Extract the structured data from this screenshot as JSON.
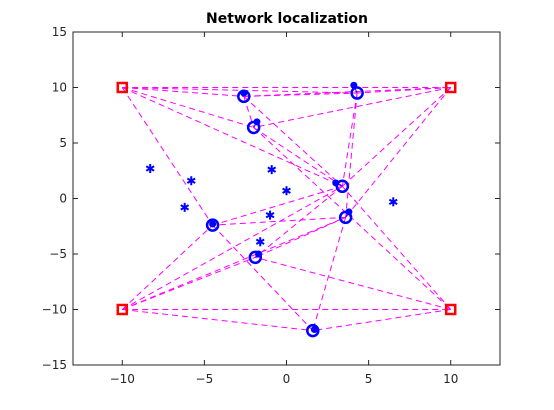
{
  "chart_data": {
    "type": "scatter",
    "title": "Network localization",
    "xlabel": "",
    "ylabel": "",
    "xlim": [
      -13,
      13
    ],
    "ylim": [
      -15,
      15
    ],
    "xticks": [
      -10,
      -5,
      0,
      5,
      10
    ],
    "yticks": [
      -15,
      -10,
      -5,
      0,
      5,
      10,
      15
    ],
    "grid": false,
    "colors": {
      "anchor": "#ff0000",
      "estimate": "#0000ff",
      "true_position": "#0000ff",
      "links": "#ff00ff",
      "error_line": "#0000ff",
      "axis": "#262626"
    },
    "anchors": [
      {
        "x": -10,
        "y": 10
      },
      {
        "x": 10,
        "y": 10
      },
      {
        "x": -10,
        "y": -10
      },
      {
        "x": 10,
        "y": -10
      }
    ],
    "nodes": [
      {
        "true": [
          -2.6,
          9.5
        ],
        "est": [
          -2.6,
          9.2
        ]
      },
      {
        "true": [
          4.1,
          10.2
        ],
        "est": [
          4.3,
          9.5
        ]
      },
      {
        "true": [
          -1.8,
          6.9
        ],
        "est": [
          -2.0,
          6.4
        ]
      },
      {
        "true": [
          3.0,
          1.4
        ],
        "est": [
          3.4,
          1.1
        ]
      },
      {
        "true": [
          3.8,
          -1.2
        ],
        "est": [
          3.6,
          -1.7
        ]
      },
      {
        "true": [
          -4.5,
          -2.3
        ],
        "est": [
          -4.5,
          -2.4
        ]
      },
      {
        "true": [
          -1.7,
          -5.0
        ],
        "est": [
          -1.9,
          -5.3
        ]
      },
      {
        "true": [
          1.7,
          -11.8
        ],
        "est": [
          1.6,
          -11.9
        ]
      }
    ],
    "unlocalized": [
      {
        "x": -8.3,
        "y": 2.7
      },
      {
        "x": -5.8,
        "y": 1.6
      },
      {
        "x": -6.2,
        "y": -0.8
      },
      {
        "x": -0.9,
        "y": 2.6
      },
      {
        "x": 0.0,
        "y": 0.7
      },
      {
        "x": -1.0,
        "y": -1.5
      },
      {
        "x": -1.6,
        "y": -3.9
      },
      {
        "x": 6.5,
        "y": -0.3
      }
    ],
    "links": [
      [
        [
          -10,
          10
        ],
        [
          -2.6,
          9.2
        ]
      ],
      [
        [
          -10,
          10
        ],
        [
          4.3,
          9.5
        ]
      ],
      [
        [
          -10,
          10
        ],
        [
          10,
          10
        ]
      ],
      [
        [
          -10,
          10
        ],
        [
          -2.0,
          6.4
        ]
      ],
      [
        [
          -10,
          10
        ],
        [
          3.4,
          1.1
        ]
      ],
      [
        [
          -10,
          10
        ],
        [
          -4.5,
          -2.4
        ]
      ],
      [
        [
          10,
          10
        ],
        [
          -2.6,
          9.2
        ]
      ],
      [
        [
          10,
          10
        ],
        [
          4.3,
          9.5
        ]
      ],
      [
        [
          10,
          10
        ],
        [
          -2.0,
          6.4
        ]
      ],
      [
        [
          10,
          10
        ],
        [
          3.4,
          1.1
        ]
      ],
      [
        [
          10,
          10
        ],
        [
          3.6,
          -1.7
        ]
      ],
      [
        [
          -2.6,
          9.2
        ],
        [
          4.3,
          9.5
        ]
      ],
      [
        [
          -2.6,
          9.2
        ],
        [
          -2.0,
          6.4
        ]
      ],
      [
        [
          -2.6,
          9.2
        ],
        [
          3.4,
          1.1
        ]
      ],
      [
        [
          4.3,
          9.5
        ],
        [
          3.4,
          1.1
        ]
      ],
      [
        [
          4.3,
          9.5
        ],
        [
          3.6,
          -1.7
        ]
      ],
      [
        [
          -2.0,
          6.4
        ],
        [
          3.4,
          1.1
        ]
      ],
      [
        [
          -2.0,
          6.4
        ],
        [
          10,
          -10
        ]
      ],
      [
        [
          -10,
          -10
        ],
        [
          -4.5,
          -2.4
        ]
      ],
      [
        [
          -10,
          -10
        ],
        [
          3.4,
          1.1
        ]
      ],
      [
        [
          -10,
          -10
        ],
        [
          3.6,
          -1.7
        ]
      ],
      [
        [
          -10,
          -10
        ],
        [
          -1.9,
          -5.3
        ]
      ],
      [
        [
          -10,
          -10
        ],
        [
          1.6,
          -11.9
        ]
      ],
      [
        [
          -10,
          -10
        ],
        [
          10,
          -10
        ]
      ],
      [
        [
          10,
          -10
        ],
        [
          3.4,
          1.1
        ]
      ],
      [
        [
          10,
          -10
        ],
        [
          -1.9,
          -5.3
        ]
      ],
      [
        [
          10,
          -10
        ],
        [
          1.6,
          -11.9
        ]
      ],
      [
        [
          3.4,
          1.1
        ],
        [
          -4.5,
          -2.4
        ]
      ],
      [
        [
          3.4,
          1.1
        ],
        [
          -1.9,
          -5.3
        ]
      ],
      [
        [
          3.6,
          -1.7
        ],
        [
          -4.5,
          -2.4
        ]
      ],
      [
        [
          3.6,
          -1.7
        ],
        [
          -1.9,
          -5.3
        ]
      ],
      [
        [
          3.6,
          -1.7
        ],
        [
          1.6,
          -11.9
        ]
      ],
      [
        [
          -4.5,
          -2.4
        ],
        [
          1.6,
          -11.9
        ]
      ]
    ]
  }
}
